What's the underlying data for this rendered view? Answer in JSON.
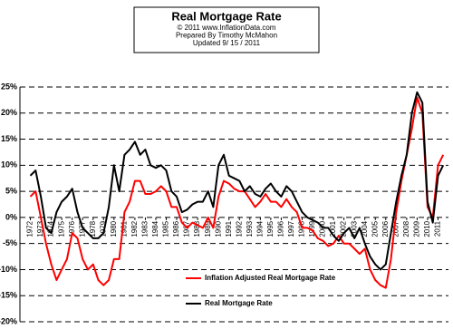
{
  "chart_data": {
    "type": "line",
    "title": "Real Mortgage Rate",
    "subtitle": [
      "© 2011  www.InflationData.com",
      "Prepared  By Timothy McMahon",
      "Updated  9/ 15 / 2011"
    ],
    "x": [
      1972.0,
      1972.5,
      1973.0,
      1973.5,
      1974.0,
      1974.5,
      1975.0,
      1975.5,
      1976.0,
      1976.5,
      1977.0,
      1977.5,
      1978.0,
      1978.5,
      1979.0,
      1979.5,
      1980.0,
      1980.5,
      1981.0,
      1981.5,
      1982.0,
      1982.5,
      1983.0,
      1983.5,
      1984.0,
      1984.5,
      1985.0,
      1985.5,
      1986.0,
      1986.5,
      1987.0,
      1987.5,
      1988.0,
      1988.5,
      1989.0,
      1989.5,
      1990.0,
      1990.5,
      1991.0,
      1991.5,
      1992.0,
      1992.5,
      1993.0,
      1993.5,
      1994.0,
      1994.5,
      1995.0,
      1995.5,
      1996.0,
      1996.5,
      1997.0,
      1997.5,
      1998.0,
      1998.5,
      1999.0,
      1999.5,
      2000.0,
      2000.5,
      2001.0,
      2001.5,
      2002.0,
      2002.5,
      2003.0,
      2003.5,
      2004.0,
      2004.5,
      2005.0,
      2005.5,
      2006.0,
      2006.5,
      2007.0,
      2007.5,
      2008.0,
      2008.5,
      2009.0,
      2009.5,
      2010.0,
      2010.5,
      2011.0,
      2011.5
    ],
    "series": [
      {
        "name": "Inflation Adjusted Real Mortgage Rate",
        "color": "#ff0000",
        "values": [
          4,
          5,
          0,
          -5,
          -9,
          -12,
          -10,
          -8,
          -3,
          -4,
          -8,
          -10,
          -9,
          -12,
          -13,
          -12,
          -8,
          -8,
          1,
          3,
          7,
          7,
          4.5,
          4.5,
          5,
          6,
          5,
          2,
          2,
          -1,
          -2,
          -1,
          -1.5,
          -2,
          0,
          -2,
          4,
          7,
          6.5,
          5.5,
          5,
          5,
          3.5,
          2,
          3,
          4.5,
          3,
          3,
          2,
          3.5,
          2,
          1,
          -2,
          -2,
          -2.5,
          -4,
          -4.5,
          -5.5,
          -5,
          -3.5,
          -5,
          -5,
          -6,
          -7,
          -6,
          -10,
          -12,
          -13,
          -13.5,
          -8,
          1,
          7,
          12,
          17,
          23,
          20,
          2,
          0,
          10,
          12
        ]
      },
      {
        "name": "Real Mortgage Rate",
        "color": "#000000",
        "values": [
          8,
          9,
          4,
          -2,
          -3,
          1,
          3,
          4,
          5.5,
          1,
          -2,
          -3,
          -4,
          -4,
          -3,
          2,
          10,
          5,
          12,
          13,
          14.5,
          12,
          13,
          10,
          9.5,
          10,
          9,
          5,
          4,
          1,
          1.5,
          2.5,
          3,
          3,
          5,
          2,
          10,
          12,
          8,
          7.5,
          7,
          5,
          6,
          4.5,
          4,
          5.5,
          6.5,
          5,
          4,
          6,
          5,
          3,
          1,
          0,
          -0.5,
          -1,
          -2,
          -2,
          -3.5,
          -4.5,
          -3,
          -2,
          -4,
          -2,
          -5,
          -7.5,
          -9,
          -10,
          -9,
          -3,
          3,
          8,
          12,
          20,
          24,
          22,
          3,
          -1,
          8,
          10
        ]
      }
    ],
    "xlim": [
      1971,
      2012
    ],
    "xticks": [
      1972,
      1973,
      1974,
      1975,
      1976,
      1977,
      1978,
      1979,
      1980,
      1981,
      1982,
      1983,
      1984,
      1985,
      1986,
      1987,
      1988,
      1989,
      1990,
      1991,
      1992,
      1993,
      1994,
      1995,
      1996,
      1997,
      1998,
      1999,
      2000,
      2001,
      2002,
      2003,
      2004,
      2005,
      2006,
      2007,
      2008,
      2009,
      2010,
      2011
    ],
    "ylim": [
      -20,
      25
    ],
    "yticks": [
      {
        "value": -20,
        "label": "-20%"
      },
      {
        "value": -15,
        "label": "-15%"
      },
      {
        "value": -10,
        "label": "-10%"
      },
      {
        "value": -5,
        "label": "-5%"
      },
      {
        "value": 0,
        "label": "0%"
      },
      {
        "value": 5,
        "label": "5%"
      },
      {
        "value": 10,
        "label": "10%"
      },
      {
        "value": 15,
        "label": "15%"
      },
      {
        "value": 20,
        "label": "20%"
      },
      {
        "value": 25,
        "label": "25%"
      }
    ],
    "grid": true,
    "legend": "bottom"
  }
}
